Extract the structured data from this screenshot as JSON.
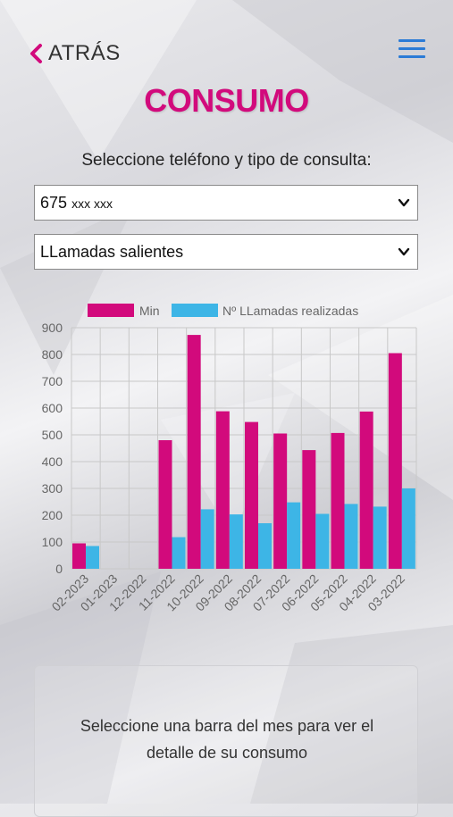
{
  "nav": {
    "back_label": "ATRÁS"
  },
  "page": {
    "title": "CONSUMO",
    "subtitle": "Seleccione teléfono y tipo de consulta:"
  },
  "phone_select": {
    "prefix": "675",
    "suffix": "xxx xxx"
  },
  "type_select": {
    "value": "LLamadas salientes"
  },
  "chart_data": {
    "type": "bar",
    "categories": [
      "02-2023",
      "01-2023",
      "12-2022",
      "11-2022",
      "10-2022",
      "09-2022",
      "08-2022",
      "07-2022",
      "06-2022",
      "05-2022",
      "04-2022",
      "03-2022"
    ],
    "series": [
      {
        "name": "Min",
        "values": [
          95,
          0,
          0,
          480,
          873,
          588,
          548,
          505,
          443,
          507,
          587,
          805
        ]
      },
      {
        "name": "Nº LLamadas realizadas",
        "values": [
          85,
          0,
          0,
          118,
          222,
          203,
          170,
          248,
          205,
          242,
          232,
          300
        ]
      }
    ],
    "y_ticks": [
      "0",
      "100",
      "200",
      "300",
      "400",
      "500",
      "600",
      "700",
      "800",
      "900"
    ],
    "ylim": [
      0,
      900
    ],
    "grid": true,
    "legend": "top-center",
    "colors": [
      "#d20a7c",
      "#3db5e6"
    ]
  },
  "info": {
    "text": "Seleccione una barra del mes para ver el detalle de su consumo"
  },
  "colors": {
    "brand": "#d20a7c",
    "menu": "#2b7bd6"
  }
}
